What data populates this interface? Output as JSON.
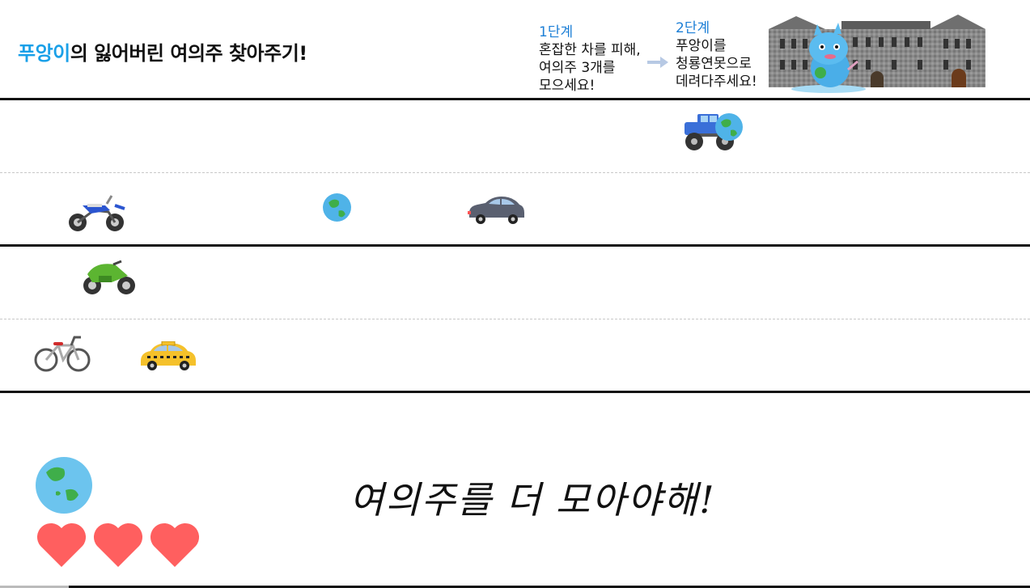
{
  "header": {
    "title_accent": "푸앙이",
    "title_rest": "의 잃어버린 여의주 찾아주기!"
  },
  "steps": [
    {
      "title": "1단계",
      "lines": [
        "혼잡한 차를 피해,",
        "여의주 3개를",
        "모으세요!"
      ]
    },
    {
      "title": "2단계",
      "lines": [
        "푸앙이를",
        "청룡연못으로",
        "데려다주세요!"
      ]
    }
  ],
  "road": {
    "vehicles": [
      {
        "icon": "monster-truck-icon",
        "color": "#3a6fd8",
        "lane": 1
      },
      {
        "icon": "dirt-bike-icon",
        "color": "#2b55d0",
        "lane": 2
      },
      {
        "icon": "sedan-car-icon",
        "color": "#5a6070",
        "lane": 2
      },
      {
        "icon": "sport-motorcycle-icon",
        "color": "#5cb531",
        "lane": 3
      },
      {
        "icon": "bicycle-icon",
        "color": "#d02b2b",
        "lane": 4
      },
      {
        "icon": "taxi-icon",
        "color": "#f5c12b",
        "lane": 4
      }
    ],
    "orbs": [
      {
        "icon": "globe-orb-icon",
        "lane": 1,
        "carried_by": "monster-truck"
      },
      {
        "icon": "globe-orb-icon",
        "lane": 2
      }
    ]
  },
  "status": {
    "collected_orbs": 1,
    "lives": 3,
    "message": "여의주를 더 모아야해!"
  },
  "colors": {
    "accent": "#1aa0e8",
    "step_title": "#1d7fd6",
    "heart": "#ff5f5f",
    "orb_land": "#3fae4a",
    "orb_sea": "#4fb3e8"
  }
}
